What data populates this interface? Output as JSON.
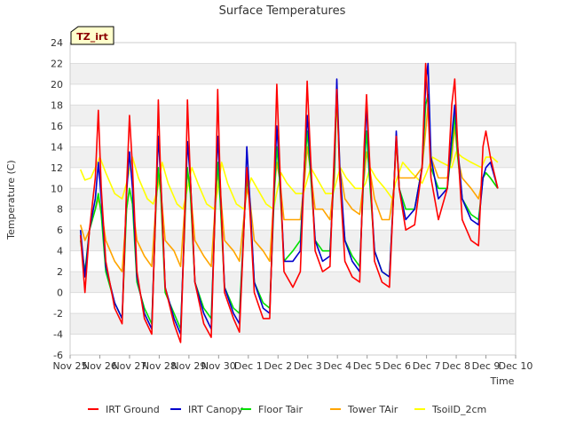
{
  "chart_data": {
    "type": "line",
    "title": "Surface Temperatures",
    "xlabel": "Time",
    "ylabel": "Temperature (C)",
    "badge": "TZ_irt",
    "ylim": [
      -6,
      24
    ],
    "yticks": [
      "-6",
      "-4",
      "-2",
      "0",
      "2",
      "4",
      "6",
      "8",
      "10",
      "12",
      "14",
      "16",
      "18",
      "20",
      "22",
      "24"
    ],
    "xlim": [
      0,
      15
    ],
    "xtick_labels": [
      "Nov 25",
      "Nov 26",
      "Nov 27",
      "Nov 28",
      "Nov 29",
      "Nov 30",
      "Dec 1",
      "Dec 2",
      "Dec 3",
      "Dec 4",
      "Dec 5",
      "Dec 6",
      "Dec 7",
      "Dec 8",
      "Dec 9",
      "Dec 10"
    ],
    "grid": "horizontal bands",
    "legend_position": "bottom",
    "series": [
      {
        "name": "IRT Ground",
        "color": "#ff0000",
        "x": [
          0.35,
          0.5,
          0.65,
          0.85,
          0.95,
          1.05,
          1.2,
          1.5,
          1.75,
          1.9,
          2.0,
          2.1,
          2.25,
          2.5,
          2.75,
          2.9,
          2.97,
          3.05,
          3.2,
          3.5,
          3.72,
          3.88,
          3.95,
          4.05,
          4.2,
          4.5,
          4.75,
          4.9,
          4.97,
          5.05,
          5.2,
          5.5,
          5.7,
          5.88,
          5.95,
          6.05,
          6.2,
          6.5,
          6.72,
          6.88,
          6.96,
          7.05,
          7.2,
          7.5,
          7.75,
          7.9,
          7.98,
          8.08,
          8.25,
          8.5,
          8.75,
          8.9,
          8.98,
          9.08,
          9.25,
          9.5,
          9.75,
          9.9,
          9.98,
          10.08,
          10.25,
          10.5,
          10.75,
          10.9,
          10.98,
          11.08,
          11.3,
          11.6,
          11.85,
          11.97,
          12.05,
          12.15,
          12.4,
          12.7,
          12.85,
          12.95,
          13.05,
          13.2,
          13.5,
          13.75,
          13.9,
          14.0,
          14.15,
          14.4
        ],
        "y": [
          5.5,
          0.0,
          6.0,
          11.0,
          17.5,
          10.0,
          3.0,
          -1.5,
          -3.0,
          10.0,
          17.0,
          12.0,
          2.0,
          -2.5,
          -4.0,
          10.0,
          18.5,
          11.0,
          0.5,
          -3.0,
          -4.8,
          9.0,
          18.5,
          11.0,
          1.0,
          -3.0,
          -4.3,
          10.0,
          19.5,
          11.0,
          0.0,
          -2.5,
          -3.8,
          8.0,
          12.0,
          8.0,
          0.0,
          -2.5,
          -2.5,
          12.0,
          20.0,
          13.0,
          2.0,
          0.5,
          2.0,
          13.0,
          20.3,
          14.0,
          4.0,
          2.0,
          2.5,
          14.0,
          19.5,
          11.0,
          3.0,
          1.5,
          1.0,
          14.0,
          19.0,
          13.0,
          3.0,
          1.0,
          0.5,
          10.0,
          15.0,
          10.0,
          6.0,
          6.5,
          12.0,
          22.0,
          18.0,
          11.0,
          7.0,
          10.0,
          18.0,
          20.5,
          14.0,
          7.0,
          5.0,
          4.5,
          14.0,
          15.5,
          13.0,
          10.0
        ]
      },
      {
        "name": "IRT Canopy",
        "color": "#0000cc",
        "x": [
          0.35,
          0.5,
          0.65,
          0.85,
          0.95,
          1.05,
          1.2,
          1.5,
          1.75,
          1.9,
          2.0,
          2.1,
          2.25,
          2.5,
          2.75,
          2.9,
          2.97,
          3.05,
          3.2,
          3.5,
          3.72,
          3.88,
          3.95,
          4.05,
          4.2,
          4.5,
          4.75,
          4.9,
          4.97,
          5.05,
          5.2,
          5.5,
          5.7,
          5.88,
          5.95,
          6.05,
          6.2,
          6.5,
          6.72,
          6.88,
          6.96,
          7.05,
          7.2,
          7.5,
          7.75,
          7.9,
          7.98,
          8.08,
          8.25,
          8.5,
          8.75,
          8.9,
          8.98,
          9.08,
          9.25,
          9.5,
          9.75,
          9.9,
          9.98,
          10.08,
          10.25,
          10.5,
          10.75,
          10.9,
          10.98,
          11.08,
          11.3,
          11.6,
          11.85,
          11.97,
          12.05,
          12.15,
          12.4,
          12.7,
          12.85,
          12.95,
          13.05,
          13.2,
          13.5,
          13.75,
          13.9,
          14.0,
          14.15,
          14.4
        ],
        "y": [
          6.0,
          1.5,
          6.0,
          9.0,
          12.5,
          9.0,
          2.5,
          -1.0,
          -2.5,
          9.5,
          13.5,
          10.0,
          1.5,
          -2.0,
          -3.5,
          10.0,
          15.0,
          11.0,
          0.5,
          -2.5,
          -4.0,
          9.0,
          14.5,
          11.0,
          1.0,
          -2.0,
          -3.5,
          10.0,
          15.0,
          10.5,
          0.5,
          -2.0,
          -3.0,
          8.0,
          14.0,
          9.0,
          1.0,
          -1.5,
          -2.0,
          11.0,
          16.0,
          12.0,
          3.0,
          3.0,
          4.0,
          13.0,
          17.0,
          13.0,
          5.0,
          3.0,
          3.5,
          13.0,
          20.5,
          12.0,
          5.0,
          3.0,
          2.0,
          13.0,
          18.0,
          12.0,
          4.0,
          2.0,
          1.5,
          10.0,
          15.5,
          10.0,
          7.0,
          8.0,
          12.0,
          20.0,
          22.0,
          13.0,
          9.0,
          10.0,
          15.0,
          18.0,
          14.0,
          9.0,
          7.0,
          6.5,
          11.0,
          12.0,
          12.5,
          10.0
        ]
      },
      {
        "name": "Floor Tair",
        "color": "#00e000",
        "x": [
          0.35,
          0.5,
          0.65,
          0.85,
          0.95,
          1.05,
          1.2,
          1.5,
          1.75,
          1.9,
          2.0,
          2.1,
          2.25,
          2.5,
          2.75,
          2.9,
          2.97,
          3.05,
          3.2,
          3.5,
          3.72,
          3.88,
          3.95,
          4.05,
          4.2,
          4.5,
          4.75,
          4.9,
          4.97,
          5.05,
          5.2,
          5.5,
          5.7,
          5.88,
          5.95,
          6.05,
          6.2,
          6.5,
          6.72,
          6.88,
          6.96,
          7.05,
          7.2,
          7.5,
          7.75,
          7.9,
          7.98,
          8.08,
          8.25,
          8.5,
          8.75,
          8.9,
          8.98,
          9.08,
          9.25,
          9.5,
          9.75,
          9.9,
          9.98,
          10.08,
          10.25,
          10.5,
          10.75,
          10.9,
          10.98,
          11.08,
          11.3,
          11.6,
          11.85,
          11.97,
          12.05,
          12.15,
          12.4,
          12.7,
          12.85,
          12.95,
          13.05,
          13.2,
          13.5,
          13.75,
          13.9,
          14.0,
          14.15,
          14.4
        ],
        "y": [
          5.0,
          2.0,
          6.0,
          8.0,
          9.5,
          7.5,
          2.0,
          -1.0,
          -2.5,
          8.0,
          10.0,
          8.5,
          1.0,
          -1.5,
          -3.0,
          9.0,
          12.0,
          9.5,
          0.0,
          -2.0,
          -3.5,
          8.0,
          12.0,
          9.5,
          1.0,
          -1.5,
          -2.5,
          9.0,
          12.5,
          9.0,
          0.5,
          -1.5,
          -2.0,
          8.0,
          11.0,
          8.5,
          1.0,
          -1.0,
          -1.5,
          10.0,
          14.0,
          11.0,
          3.0,
          4.0,
          5.0,
          12.0,
          15.5,
          12.0,
          5.0,
          4.0,
          4.0,
          12.0,
          19.5,
          11.0,
          5.0,
          3.5,
          2.5,
          12.0,
          15.5,
          11.0,
          4.0,
          2.0,
          1.5,
          10.0,
          15.0,
          10.0,
          8.0,
          8.0,
          12.0,
          18.0,
          19.0,
          12.0,
          10.0,
          10.0,
          14.0,
          17.0,
          13.0,
          9.0,
          7.5,
          7.0,
          11.0,
          11.5,
          11.0,
          10.0
        ]
      },
      {
        "name": "Tower TAir",
        "color": "#ffa500",
        "x": [
          0.35,
          0.5,
          0.65,
          0.85,
          0.95,
          1.05,
          1.2,
          1.5,
          1.75,
          1.9,
          2.0,
          2.1,
          2.25,
          2.5,
          2.75,
          2.9,
          2.97,
          3.05,
          3.2,
          3.5,
          3.72,
          3.88,
          3.95,
          4.05,
          4.2,
          4.5,
          4.75,
          4.9,
          4.97,
          5.05,
          5.2,
          5.5,
          5.7,
          5.88,
          5.95,
          6.05,
          6.2,
          6.5,
          6.72,
          6.88,
          6.96,
          7.05,
          7.2,
          7.5,
          7.75,
          7.9,
          7.98,
          8.08,
          8.25,
          8.5,
          8.75,
          8.9,
          8.98,
          9.08,
          9.25,
          9.5,
          9.75,
          9.9,
          9.98,
          10.08,
          10.25,
          10.5,
          10.75,
          10.9,
          10.98,
          11.08,
          11.3,
          11.6,
          11.85,
          11.97,
          12.05,
          12.15,
          12.4,
          12.7,
          12.85,
          12.95,
          13.05,
          13.2,
          13.5,
          13.75,
          13.9,
          14.0,
          14.15,
          14.4
        ],
        "y": [
          6.5,
          5.0,
          6.0,
          8.0,
          9.0,
          8.0,
          5.0,
          3.0,
          2.0,
          8.0,
          10.0,
          8.5,
          5.0,
          3.5,
          2.5,
          9.0,
          11.0,
          10.0,
          5.0,
          4.0,
          2.5,
          9.0,
          11.5,
          10.0,
          5.0,
          3.5,
          2.5,
          9.0,
          11.5,
          10.0,
          5.0,
          4.0,
          3.0,
          8.0,
          10.0,
          9.0,
          5.0,
          4.0,
          3.0,
          10.0,
          12.5,
          11.0,
          7.0,
          7.0,
          7.0,
          11.0,
          14.0,
          12.0,
          8.0,
          8.0,
          7.0,
          11.0,
          19.5,
          12.0,
          9.0,
          8.0,
          7.5,
          11.0,
          13.5,
          12.0,
          9.0,
          7.0,
          7.0,
          10.0,
          14.5,
          11.0,
          11.0,
          11.0,
          12.0,
          15.5,
          18.0,
          13.0,
          11.0,
          11.0,
          13.0,
          16.0,
          13.0,
          11.0,
          10.0,
          9.0,
          11.0,
          11.5,
          11.0,
          10.0
        ]
      },
      {
        "name": "TsoilD_2cm",
        "color": "#ffff00",
        "x": [
          0.35,
          0.5,
          0.7,
          1.0,
          1.2,
          1.5,
          1.75,
          1.9,
          2.1,
          2.3,
          2.6,
          2.8,
          2.95,
          3.1,
          3.3,
          3.6,
          3.8,
          3.95,
          4.1,
          4.3,
          4.6,
          4.85,
          4.95,
          5.1,
          5.3,
          5.6,
          5.85,
          5.95,
          6.1,
          6.3,
          6.6,
          6.85,
          6.95,
          7.1,
          7.3,
          7.6,
          7.85,
          7.95,
          8.1,
          8.3,
          8.6,
          8.85,
          8.95,
          9.1,
          9.3,
          9.6,
          9.85,
          9.95,
          10.1,
          10.3,
          10.6,
          10.85,
          10.95,
          11.2,
          11.5,
          11.85,
          12.0,
          12.2,
          12.5,
          12.85,
          13.0,
          13.2,
          13.5,
          13.85,
          14.0,
          14.2,
          14.4
        ],
        "y": [
          11.8,
          10.8,
          11.0,
          13.0,
          11.5,
          9.5,
          9.0,
          10.5,
          13.0,
          11.0,
          9.0,
          8.5,
          10.0,
          12.5,
          10.5,
          8.5,
          8.0,
          10.0,
          12.0,
          10.5,
          8.5,
          8.0,
          9.5,
          12.5,
          10.5,
          8.5,
          8.0,
          9.5,
          11.0,
          10.0,
          8.5,
          8.0,
          9.5,
          11.5,
          10.5,
          9.5,
          9.5,
          10.5,
          12.0,
          11.0,
          9.5,
          9.5,
          10.5,
          12.0,
          11.0,
          10.0,
          10.0,
          10.5,
          12.0,
          11.0,
          10.0,
          9.0,
          10.5,
          12.5,
          11.5,
          10.5,
          11.5,
          13.0,
          12.5,
          12.0,
          13.5,
          13.0,
          12.5,
          12.0,
          13.0,
          13.0,
          12.5
        ]
      }
    ]
  }
}
